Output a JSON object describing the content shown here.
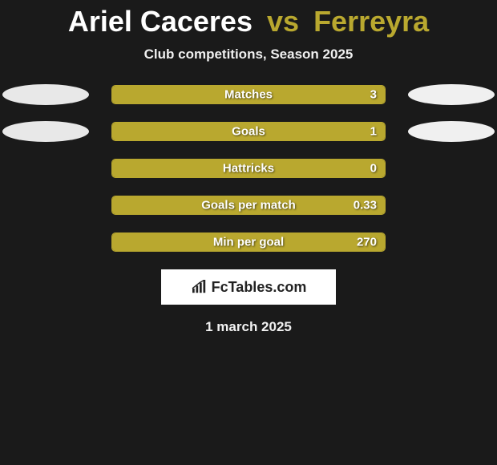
{
  "title": {
    "player1": "Ariel Caceres",
    "vs": "vs",
    "player2": "Ferreyra"
  },
  "subtitle": "Club competitions, Season 2025",
  "accent_color": "#b9a82f",
  "background_color": "#1a1a1a",
  "ellipse_left_color": "#e8e8e8",
  "ellipse_right_color": "#f0f0f0",
  "stats": [
    {
      "label": "Matches",
      "value": "3",
      "fill_pct": 100,
      "show_left_ellipse": true,
      "show_right_ellipse": true
    },
    {
      "label": "Goals",
      "value": "1",
      "fill_pct": 100,
      "show_left_ellipse": true,
      "show_right_ellipse": true
    },
    {
      "label": "Hattricks",
      "value": "0",
      "fill_pct": 100,
      "show_left_ellipse": false,
      "show_right_ellipse": false
    },
    {
      "label": "Goals per match",
      "value": "0.33",
      "fill_pct": 100,
      "show_left_ellipse": false,
      "show_right_ellipse": false
    },
    {
      "label": "Min per goal",
      "value": "270",
      "fill_pct": 100,
      "show_left_ellipse": false,
      "show_right_ellipse": false
    }
  ],
  "brand": {
    "text": "FcTables.com"
  },
  "date": "1 march 2025"
}
